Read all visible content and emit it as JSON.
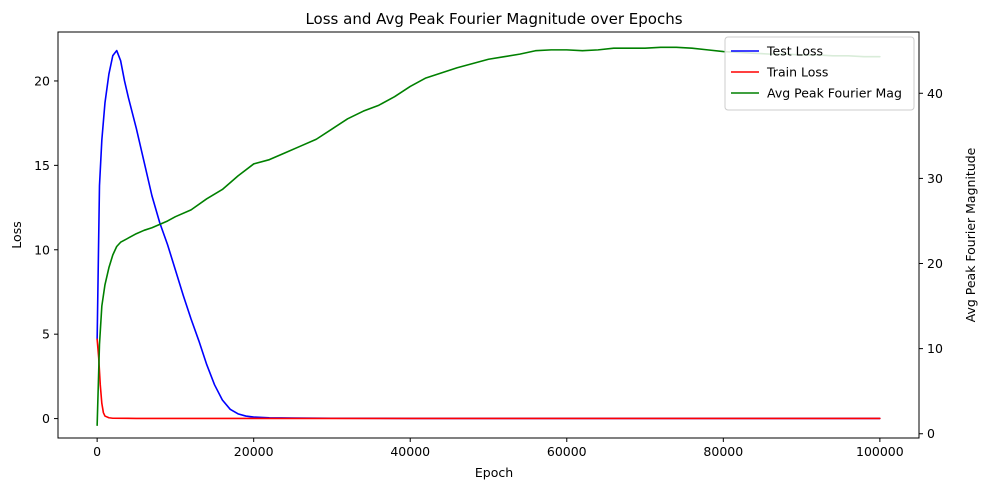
{
  "chart_data": {
    "type": "line",
    "title": "Loss and Avg Peak Fourier Magnitude over Epochs",
    "xlabel": "Epoch",
    "ylabel_left": "Loss",
    "ylabel_right": "Avg Peak Fourier Magnitude",
    "xlim": [
      -5000,
      105000
    ],
    "ylim_left": [
      -1.15,
      22.9
    ],
    "ylim_right": [
      -0.5,
      47.2
    ],
    "xticks": [
      0,
      20000,
      40000,
      60000,
      80000,
      100000
    ],
    "yticks_left": [
      0,
      5,
      10,
      15,
      20
    ],
    "yticks_right": [
      0,
      10,
      20,
      30,
      40
    ],
    "grid": false,
    "legend_position": "top-right",
    "series": [
      {
        "name": "Test Loss",
        "axis": "left",
        "color": "#0000ff",
        "x": [
          0,
          300,
          600,
          1000,
          1500,
          2000,
          2500,
          3000,
          3500,
          4000,
          5000,
          6000,
          7000,
          8000,
          9000,
          10000,
          11000,
          12000,
          13000,
          14000,
          15000,
          16000,
          17000,
          18000,
          19000,
          20000,
          22000,
          25000,
          30000,
          40000,
          50000,
          60000,
          70000,
          80000,
          90000,
          100000
        ],
        "y": [
          4.7,
          13.8,
          16.5,
          18.7,
          20.4,
          21.5,
          21.8,
          21.2,
          20.0,
          19.0,
          17.2,
          15.2,
          13.2,
          11.6,
          10.3,
          8.8,
          7.3,
          5.9,
          4.6,
          3.2,
          2.0,
          1.1,
          0.55,
          0.28,
          0.15,
          0.09,
          0.05,
          0.03,
          0.02,
          0.01,
          0.01,
          0.01,
          0.01,
          0.01,
          0.01,
          0.01
        ]
      },
      {
        "name": "Train Loss",
        "axis": "left",
        "color": "#ff0000",
        "x": [
          0,
          200,
          400,
          600,
          800,
          1000,
          1500,
          2000,
          5000,
          20000,
          50000,
          100000
        ],
        "y": [
          4.7,
          3.6,
          2.0,
          0.9,
          0.35,
          0.15,
          0.05,
          0.02,
          0.01,
          0.01,
          0.01,
          0.01
        ]
      },
      {
        "name": "Avg Peak Fourier Mag",
        "axis": "right",
        "color": "#008000",
        "x": [
          0,
          300,
          600,
          1000,
          1500,
          2000,
          2500,
          3000,
          4000,
          5000,
          6000,
          7000,
          8000,
          9000,
          10000,
          12000,
          14000,
          16000,
          18000,
          20000,
          22000,
          24000,
          26000,
          28000,
          30000,
          32000,
          34000,
          36000,
          38000,
          40000,
          42000,
          44000,
          46000,
          48000,
          50000,
          52000,
          54000,
          56000,
          58000,
          60000,
          62000,
          64000,
          66000,
          68000,
          70000,
          72000,
          74000,
          76000,
          78000,
          80000,
          82000,
          84000,
          86000,
          88000,
          90000,
          92000,
          94000,
          96000,
          98000,
          100000
        ],
        "y": [
          1.0,
          10.5,
          15.0,
          17.5,
          19.5,
          21.0,
          22.0,
          22.5,
          23.0,
          23.5,
          23.9,
          24.2,
          24.6,
          25.0,
          25.5,
          26.3,
          27.6,
          28.7,
          30.3,
          31.7,
          32.2,
          33.0,
          33.8,
          34.6,
          35.8,
          37.0,
          37.9,
          38.6,
          39.6,
          40.8,
          41.8,
          42.4,
          43.0,
          43.5,
          44.0,
          44.3,
          44.6,
          45.0,
          45.1,
          45.1,
          45.0,
          45.1,
          45.3,
          45.3,
          45.3,
          45.4,
          45.4,
          45.3,
          45.1,
          44.9,
          44.8,
          44.7,
          44.6,
          44.6,
          44.5,
          44.5,
          44.4,
          44.4,
          44.3,
          44.3
        ]
      }
    ]
  }
}
